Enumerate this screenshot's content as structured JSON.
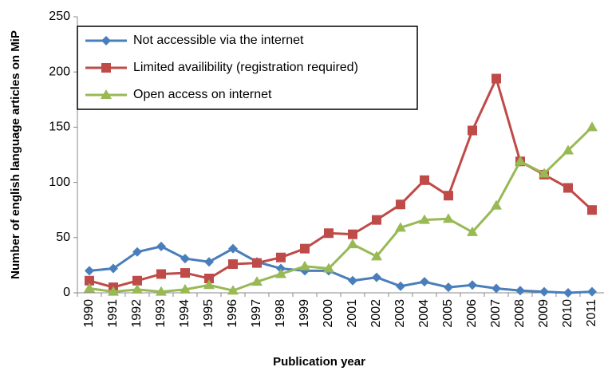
{
  "chart_data": {
    "type": "line",
    "ylabel": "Number of english language articles on MiP",
    "xlabel": "Publication year",
    "categories": [
      "1990",
      "1991",
      "1992",
      "1993",
      "1994",
      "1995",
      "1996",
      "1997",
      "1998",
      "1999",
      "2000",
      "2001",
      "2002",
      "2003",
      "2004",
      "2005",
      "2006",
      "2007",
      "2008",
      "2009",
      "2010",
      "2011"
    ],
    "series": [
      {
        "name": "Not accessible via the internet",
        "color": "#4a7ebb",
        "marker": "diamond",
        "values": [
          20,
          22,
          37,
          42,
          31,
          28,
          40,
          28,
          22,
          20,
          20,
          11,
          14,
          6,
          10,
          5,
          7,
          4,
          2,
          1,
          0,
          1
        ]
      },
      {
        "name": "Limited availibility (registration required)",
        "color": "#be4b48",
        "marker": "square",
        "values": [
          11,
          5,
          11,
          17,
          18,
          13,
          26,
          27,
          32,
          40,
          54,
          53,
          66,
          80,
          102,
          88,
          147,
          194,
          119,
          107,
          95,
          75
        ]
      },
      {
        "name": "Open access on internet",
        "color": "#98b954",
        "marker": "triangle",
        "values": [
          4,
          1,
          3,
          1,
          3,
          7,
          2,
          10,
          17,
          24,
          22,
          44,
          33,
          59,
          66,
          67,
          55,
          79,
          119,
          108,
          129,
          150
        ]
      }
    ],
    "ylim": [
      0,
      250
    ],
    "yticks": [
      0,
      50,
      100,
      150,
      200,
      250
    ],
    "grid": false,
    "legend": "upper left"
  }
}
